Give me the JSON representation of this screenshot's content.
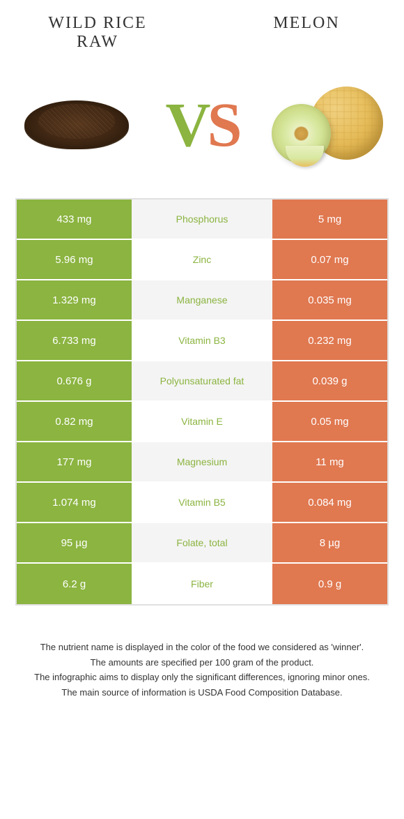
{
  "header": {
    "left": "WILD RICE\nRAW",
    "right": "MELON"
  },
  "vs": {
    "v": "V",
    "s": "S"
  },
  "colors": {
    "left": "#8bb440",
    "right": "#e07850",
    "winner_left": "#8bb440",
    "winner_right": "#e07850"
  },
  "rows": [
    {
      "left": "433 mg",
      "label": "Phosphorus",
      "right": "5 mg",
      "winner": "left"
    },
    {
      "left": "5.96 mg",
      "label": "Zinc",
      "right": "0.07 mg",
      "winner": "left"
    },
    {
      "left": "1.329 mg",
      "label": "Manganese",
      "right": "0.035 mg",
      "winner": "left"
    },
    {
      "left": "6.733 mg",
      "label": "Vitamin B3",
      "right": "0.232 mg",
      "winner": "left"
    },
    {
      "left": "0.676 g",
      "label": "Polyunsaturated fat",
      "right": "0.039 g",
      "winner": "left"
    },
    {
      "left": "0.82 mg",
      "label": "Vitamin E",
      "right": "0.05 mg",
      "winner": "left"
    },
    {
      "left": "177 mg",
      "label": "Magnesium",
      "right": "11 mg",
      "winner": "left"
    },
    {
      "left": "1.074 mg",
      "label": "Vitamin B5",
      "right": "0.084 mg",
      "winner": "left"
    },
    {
      "left": "95 µg",
      "label": "Folate, total",
      "right": "8 µg",
      "winner": "left"
    },
    {
      "left": "6.2 g",
      "label": "Fiber",
      "right": "0.9 g",
      "winner": "left"
    }
  ],
  "footer": [
    "The nutrient name is displayed in the color of the food we considered as 'winner'.",
    "The amounts are specified per 100 gram of the product.",
    "The infographic aims to display only the significant differences, ignoring minor ones.",
    "The main source of information is USDA Food Composition Database."
  ]
}
